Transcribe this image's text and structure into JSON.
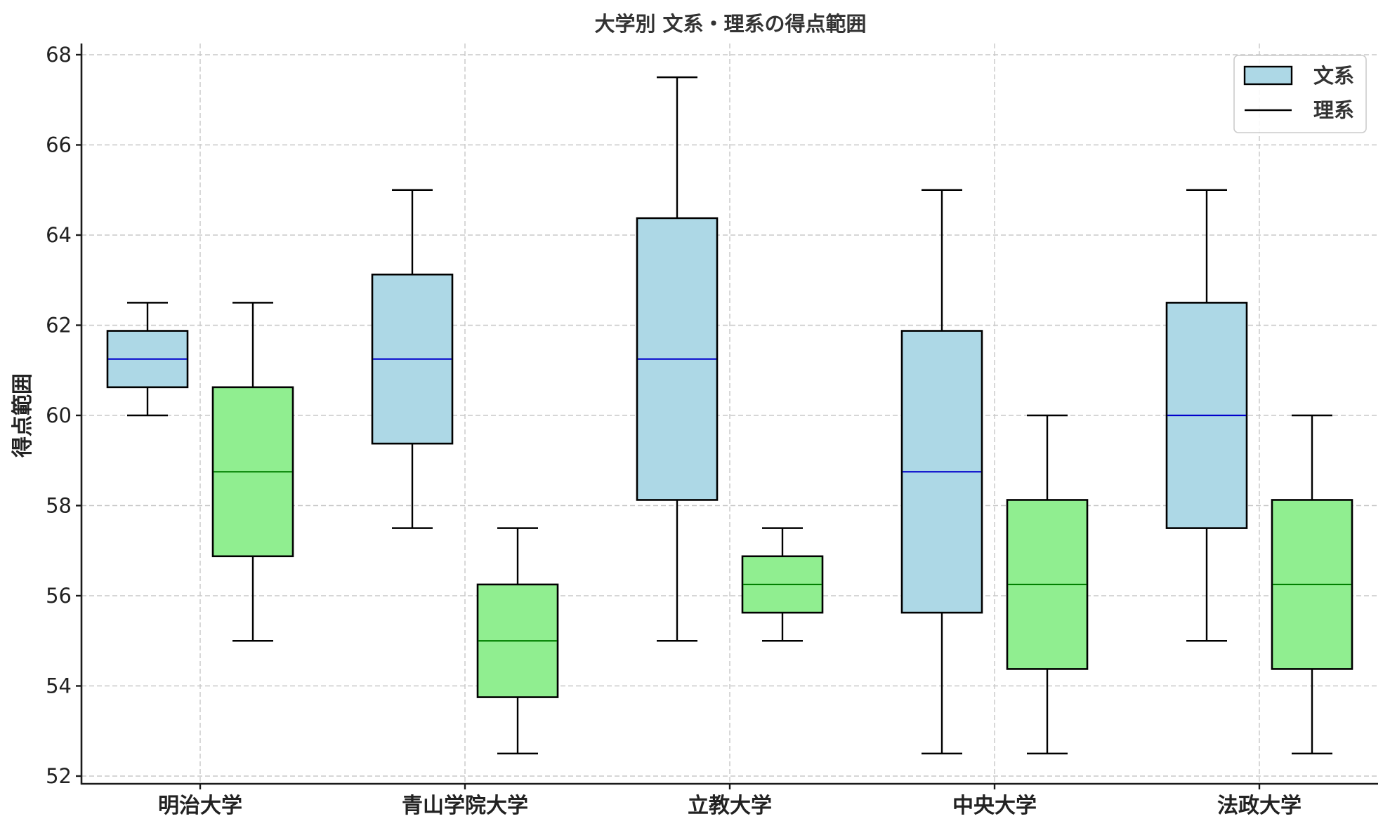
{
  "chart_data": {
    "type": "box",
    "title": "大学別 文系・理系の得点範囲",
    "xlabel": "",
    "ylabel": "得点範囲",
    "ylim": [
      51.75,
      68.25
    ],
    "yticks": [
      52,
      54,
      56,
      58,
      60,
      62,
      64,
      66,
      68
    ],
    "grid": true,
    "legend_position": "upper right",
    "categories": [
      "明治大学",
      "青山学院大学",
      "立教大学",
      "中央大学",
      "法政大学"
    ],
    "series": [
      {
        "name": "文系",
        "fill": "#add8e6",
        "median_color": "#0000cc",
        "boxes": [
          {
            "min": 60,
            "q1": 60.625,
            "median": 61.25,
            "q3": 61.875,
            "max": 62.5
          },
          {
            "min": 57.5,
            "q1": 59.375,
            "median": 61.25,
            "q3": 63.125,
            "max": 65
          },
          {
            "min": 55,
            "q1": 58.125,
            "median": 61.25,
            "q3": 64.375,
            "max": 67.5
          },
          {
            "min": 52.5,
            "q1": 55.625,
            "median": 58.75,
            "q3": 61.875,
            "max": 65
          },
          {
            "min": 55,
            "q1": 57.5,
            "median": 60,
            "q3": 62.5,
            "max": 65
          }
        ]
      },
      {
        "name": "理系",
        "fill": "#90ee90",
        "median_color": "#008000",
        "boxes": [
          {
            "min": 55,
            "q1": 56.875,
            "median": 58.75,
            "q3": 60.625,
            "max": 62.5
          },
          {
            "min": 52.5,
            "q1": 53.75,
            "median": 55,
            "q3": 56.25,
            "max": 57.5
          },
          {
            "min": 55,
            "q1": 55.625,
            "median": 56.25,
            "q3": 56.875,
            "max": 57.5
          },
          {
            "min": 52.5,
            "q1": 54.375,
            "median": 56.25,
            "q3": 58.125,
            "max": 60
          },
          {
            "min": 52.5,
            "q1": 54.375,
            "median": 56.25,
            "q3": 58.125,
            "max": 60
          }
        ]
      }
    ]
  },
  "legend": {
    "items": [
      {
        "label": "文系",
        "swatch": "box",
        "color": "#add8e6"
      },
      {
        "label": "理系",
        "swatch": "line",
        "color": "#000000"
      }
    ]
  }
}
